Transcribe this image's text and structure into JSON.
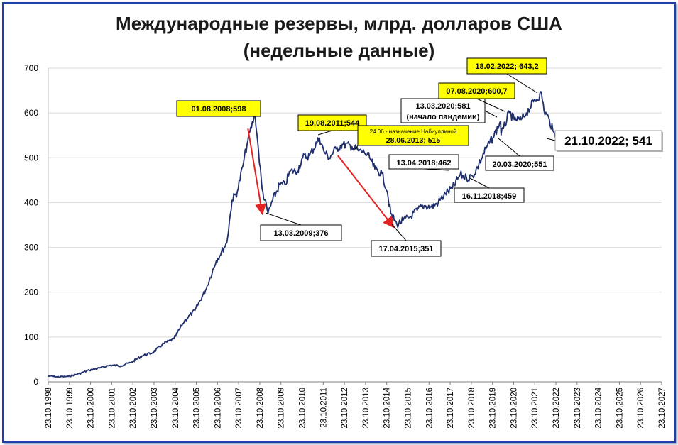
{
  "title_line1": "Международные резервы, млрд. долларов США",
  "title_line2": "(недельные данные)",
  "chart_data": {
    "type": "line",
    "title": "Международные резервы, млрд. долларов США (недельные данные)",
    "xlabel": "",
    "ylabel": "",
    "ylim": [
      0,
      700
    ],
    "xlim": [
      "1998-10-23",
      "2027-10-23"
    ],
    "y_ticks": [
      0,
      100,
      200,
      300,
      400,
      500,
      600,
      700
    ],
    "x_tick_labels": [
      "23.10.1998",
      "23.10.1999",
      "23.10.2000",
      "23.10.2001",
      "23.10.2002",
      "23.10.2003",
      "23.10.2004",
      "23.10.2005",
      "23.10.2006",
      "23.10.2007",
      "23.10.2008",
      "23.10.2009",
      "23.10.2010",
      "23.10.2011",
      "23.10.2012",
      "23.10.2013",
      "23.10.2014",
      "23.10.2015",
      "23.10.2016",
      "23.10.2017",
      "23.10.2018",
      "23.10.2019",
      "23.10.2020",
      "23.10.2021",
      "23.10.2022",
      "23.10.2023",
      "23.10.2024",
      "23.10.2025",
      "23.10.2026",
      "23.10.2027"
    ],
    "grid": "horizontal",
    "series": [
      {
        "color": "#1f2f6e",
        "points": [
          [
            "1998-10-23",
            13
          ],
          [
            "1999-04-01",
            11
          ],
          [
            "1999-10-01",
            12
          ],
          [
            "2000-04-01",
            18
          ],
          [
            "2000-10-01",
            26
          ],
          [
            "2001-04-01",
            31
          ],
          [
            "2001-10-01",
            37
          ],
          [
            "2002-04-01",
            36
          ],
          [
            "2002-10-01",
            44
          ],
          [
            "2003-04-01",
            58
          ],
          [
            "2003-10-01",
            65
          ],
          [
            "2004-04-01",
            85
          ],
          [
            "2004-10-01",
            96
          ],
          [
            "2005-04-01",
            136
          ],
          [
            "2005-10-01",
            160
          ],
          [
            "2006-04-01",
            205
          ],
          [
            "2006-10-01",
            270
          ],
          [
            "2007-04-01",
            310
          ],
          [
            "2007-07-01",
            405
          ],
          [
            "2007-10-01",
            425
          ],
          [
            "2008-01-01",
            480
          ],
          [
            "2008-04-01",
            540
          ],
          [
            "2008-08-01",
            598
          ],
          [
            "2008-10-01",
            515
          ],
          [
            "2008-12-01",
            430
          ],
          [
            "2009-03-13",
            376
          ],
          [
            "2009-06-01",
            405
          ],
          [
            "2009-10-01",
            440
          ],
          [
            "2010-01-01",
            440
          ],
          [
            "2010-04-01",
            470
          ],
          [
            "2010-08-01",
            470
          ],
          [
            "2010-11-01",
            500
          ],
          [
            "2011-03-01",
            505
          ],
          [
            "2011-08-19",
            544
          ],
          [
            "2011-11-01",
            515
          ],
          [
            "2012-02-01",
            500
          ],
          [
            "2012-06-01",
            520
          ],
          [
            "2012-10-01",
            530
          ],
          [
            "2013-03-01",
            525
          ],
          [
            "2013-06-28",
            515
          ],
          [
            "2013-10-01",
            512
          ],
          [
            "2014-01-01",
            500
          ],
          [
            "2014-04-01",
            475
          ],
          [
            "2014-08-01",
            465
          ],
          [
            "2014-11-01",
            425
          ],
          [
            "2015-01-01",
            375
          ],
          [
            "2015-04-17",
            351
          ],
          [
            "2015-08-01",
            360
          ],
          [
            "2015-12-01",
            368
          ],
          [
            "2016-04-01",
            383
          ],
          [
            "2016-08-01",
            393
          ],
          [
            "2016-12-01",
            390
          ],
          [
            "2017-04-01",
            400
          ],
          [
            "2017-08-01",
            420
          ],
          [
            "2017-12-01",
            432
          ],
          [
            "2018-04-13",
            462
          ],
          [
            "2018-08-01",
            455
          ],
          [
            "2018-11-16",
            459
          ],
          [
            "2019-03-01",
            485
          ],
          [
            "2019-07-01",
            520
          ],
          [
            "2019-11-01",
            545
          ],
          [
            "2020-03-13",
            581
          ],
          [
            "2020-03-20",
            551
          ],
          [
            "2020-05-01",
            565
          ],
          [
            "2020-08-07",
            600.7
          ],
          [
            "2020-11-01",
            585
          ],
          [
            "2021-03-01",
            585
          ],
          [
            "2021-06-01",
            600
          ],
          [
            "2021-10-01",
            625
          ],
          [
            "2022-02-18",
            643.2
          ],
          [
            "2022-04-01",
            605
          ],
          [
            "2022-07-01",
            585
          ],
          [
            "2022-09-01",
            560
          ],
          [
            "2022-10-21",
            541
          ]
        ]
      }
    ],
    "annotations": [
      {
        "text": "01.08.2008;598",
        "highlight": true,
        "x": "2008-08-01",
        "y": 598
      },
      {
        "text": "13.03.2009;376",
        "highlight": false,
        "x": "2009-03-13",
        "y": 376
      },
      {
        "text": "19.08.2011;544",
        "highlight": true,
        "x": "2011-08-19",
        "y": 544
      },
      {
        "text": "24.06 - назначение Набиуллиной",
        "text2": "28.06.2013; 515",
        "highlight": true,
        "x": "2013-06-28",
        "y": 515
      },
      {
        "text": "17.04.2015;351",
        "highlight": false,
        "x": "2015-04-17",
        "y": 351
      },
      {
        "text": "13.04.2018;462",
        "highlight": false,
        "x": "2018-04-13",
        "y": 462
      },
      {
        "text": "16.11.2018;459",
        "highlight": false,
        "x": "2018-11-16",
        "y": 459
      },
      {
        "text": "13.03.2020;581",
        "text2": "(начало пандемии)",
        "highlight": false,
        "x": "2020-03-13",
        "y": 581
      },
      {
        "text": "20.03.2020;551",
        "highlight": false,
        "x": "2020-03-20",
        "y": 551
      },
      {
        "text": "07.08.2020;600,7",
        "highlight": true,
        "x": "2020-08-07",
        "y": 600.7
      },
      {
        "text": "18.02.2022; 643,2",
        "highlight": true,
        "x": "2022-02-18",
        "y": 643.2
      },
      {
        "text": "21.10.2022; 541",
        "highlight": false,
        "x": "2022-10-21",
        "y": 541,
        "large": true
      }
    ],
    "arrows": [
      {
        "color": "#e52222",
        "from": [
          "2008-04-01",
          565
        ],
        "to": [
          "2008-12-01",
          378
        ]
      },
      {
        "color": "#e52222",
        "from": [
          "2012-07-01",
          505
        ],
        "to": [
          "2015-02-01",
          348
        ]
      }
    ]
  }
}
